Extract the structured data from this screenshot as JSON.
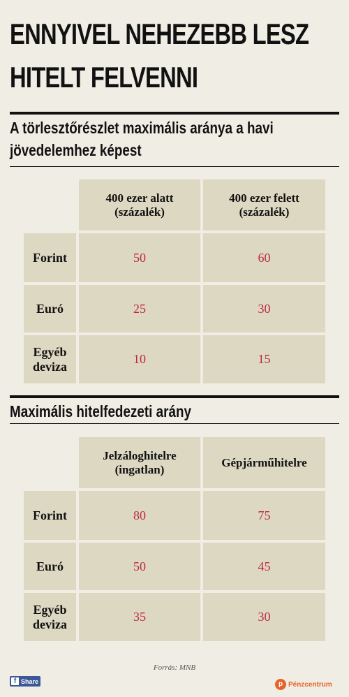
{
  "title_line1": "ENNYIVEL NEHEZEBB LESZ",
  "title_line2": "HITELT FELVENNI",
  "table1": {
    "title_line1": "A törlesztőrészlet maximális aránya a havi",
    "title_line2": "jövedelemhez képest",
    "col1_line1": "400 ezer alatt",
    "col1_line2": "(százalék)",
    "col2_line1": "400 ezer felett",
    "col2_line2": "(százalék)",
    "rows": [
      {
        "label_line1": "Forint",
        "label_line2": "",
        "v1": "50",
        "v2": "60"
      },
      {
        "label_line1": "Euró",
        "label_line2": "",
        "v1": "25",
        "v2": "30"
      },
      {
        "label_line1": "Egyéb",
        "label_line2": "deviza",
        "v1": "10",
        "v2": "15"
      }
    ]
  },
  "table2": {
    "title": "Maximális hitelfedezeti arány",
    "col1_line1": "Jelzáloghitelre",
    "col1_line2": "(ingatlan)",
    "col2": "Gépjárműhitelre",
    "rows": [
      {
        "label_line1": "Forint",
        "label_line2": "",
        "v1": "80",
        "v2": "75"
      },
      {
        "label_line1": "Euró",
        "label_line2": "",
        "v1": "50",
        "v2": "45"
      },
      {
        "label_line1": "Egyéb",
        "label_line2": "deviza",
        "v1": "35",
        "v2": "30"
      }
    ]
  },
  "source": "Forrás: MNB",
  "share_label": "Share",
  "share_icon": "f",
  "logo_mark": "p",
  "logo_text": "Pénzcentrum",
  "colors": {
    "background": "#efede4",
    "cell": "#dcd8c2",
    "value": "#c0283e",
    "facebook": "#3b5998",
    "logo": "#e8632a"
  }
}
